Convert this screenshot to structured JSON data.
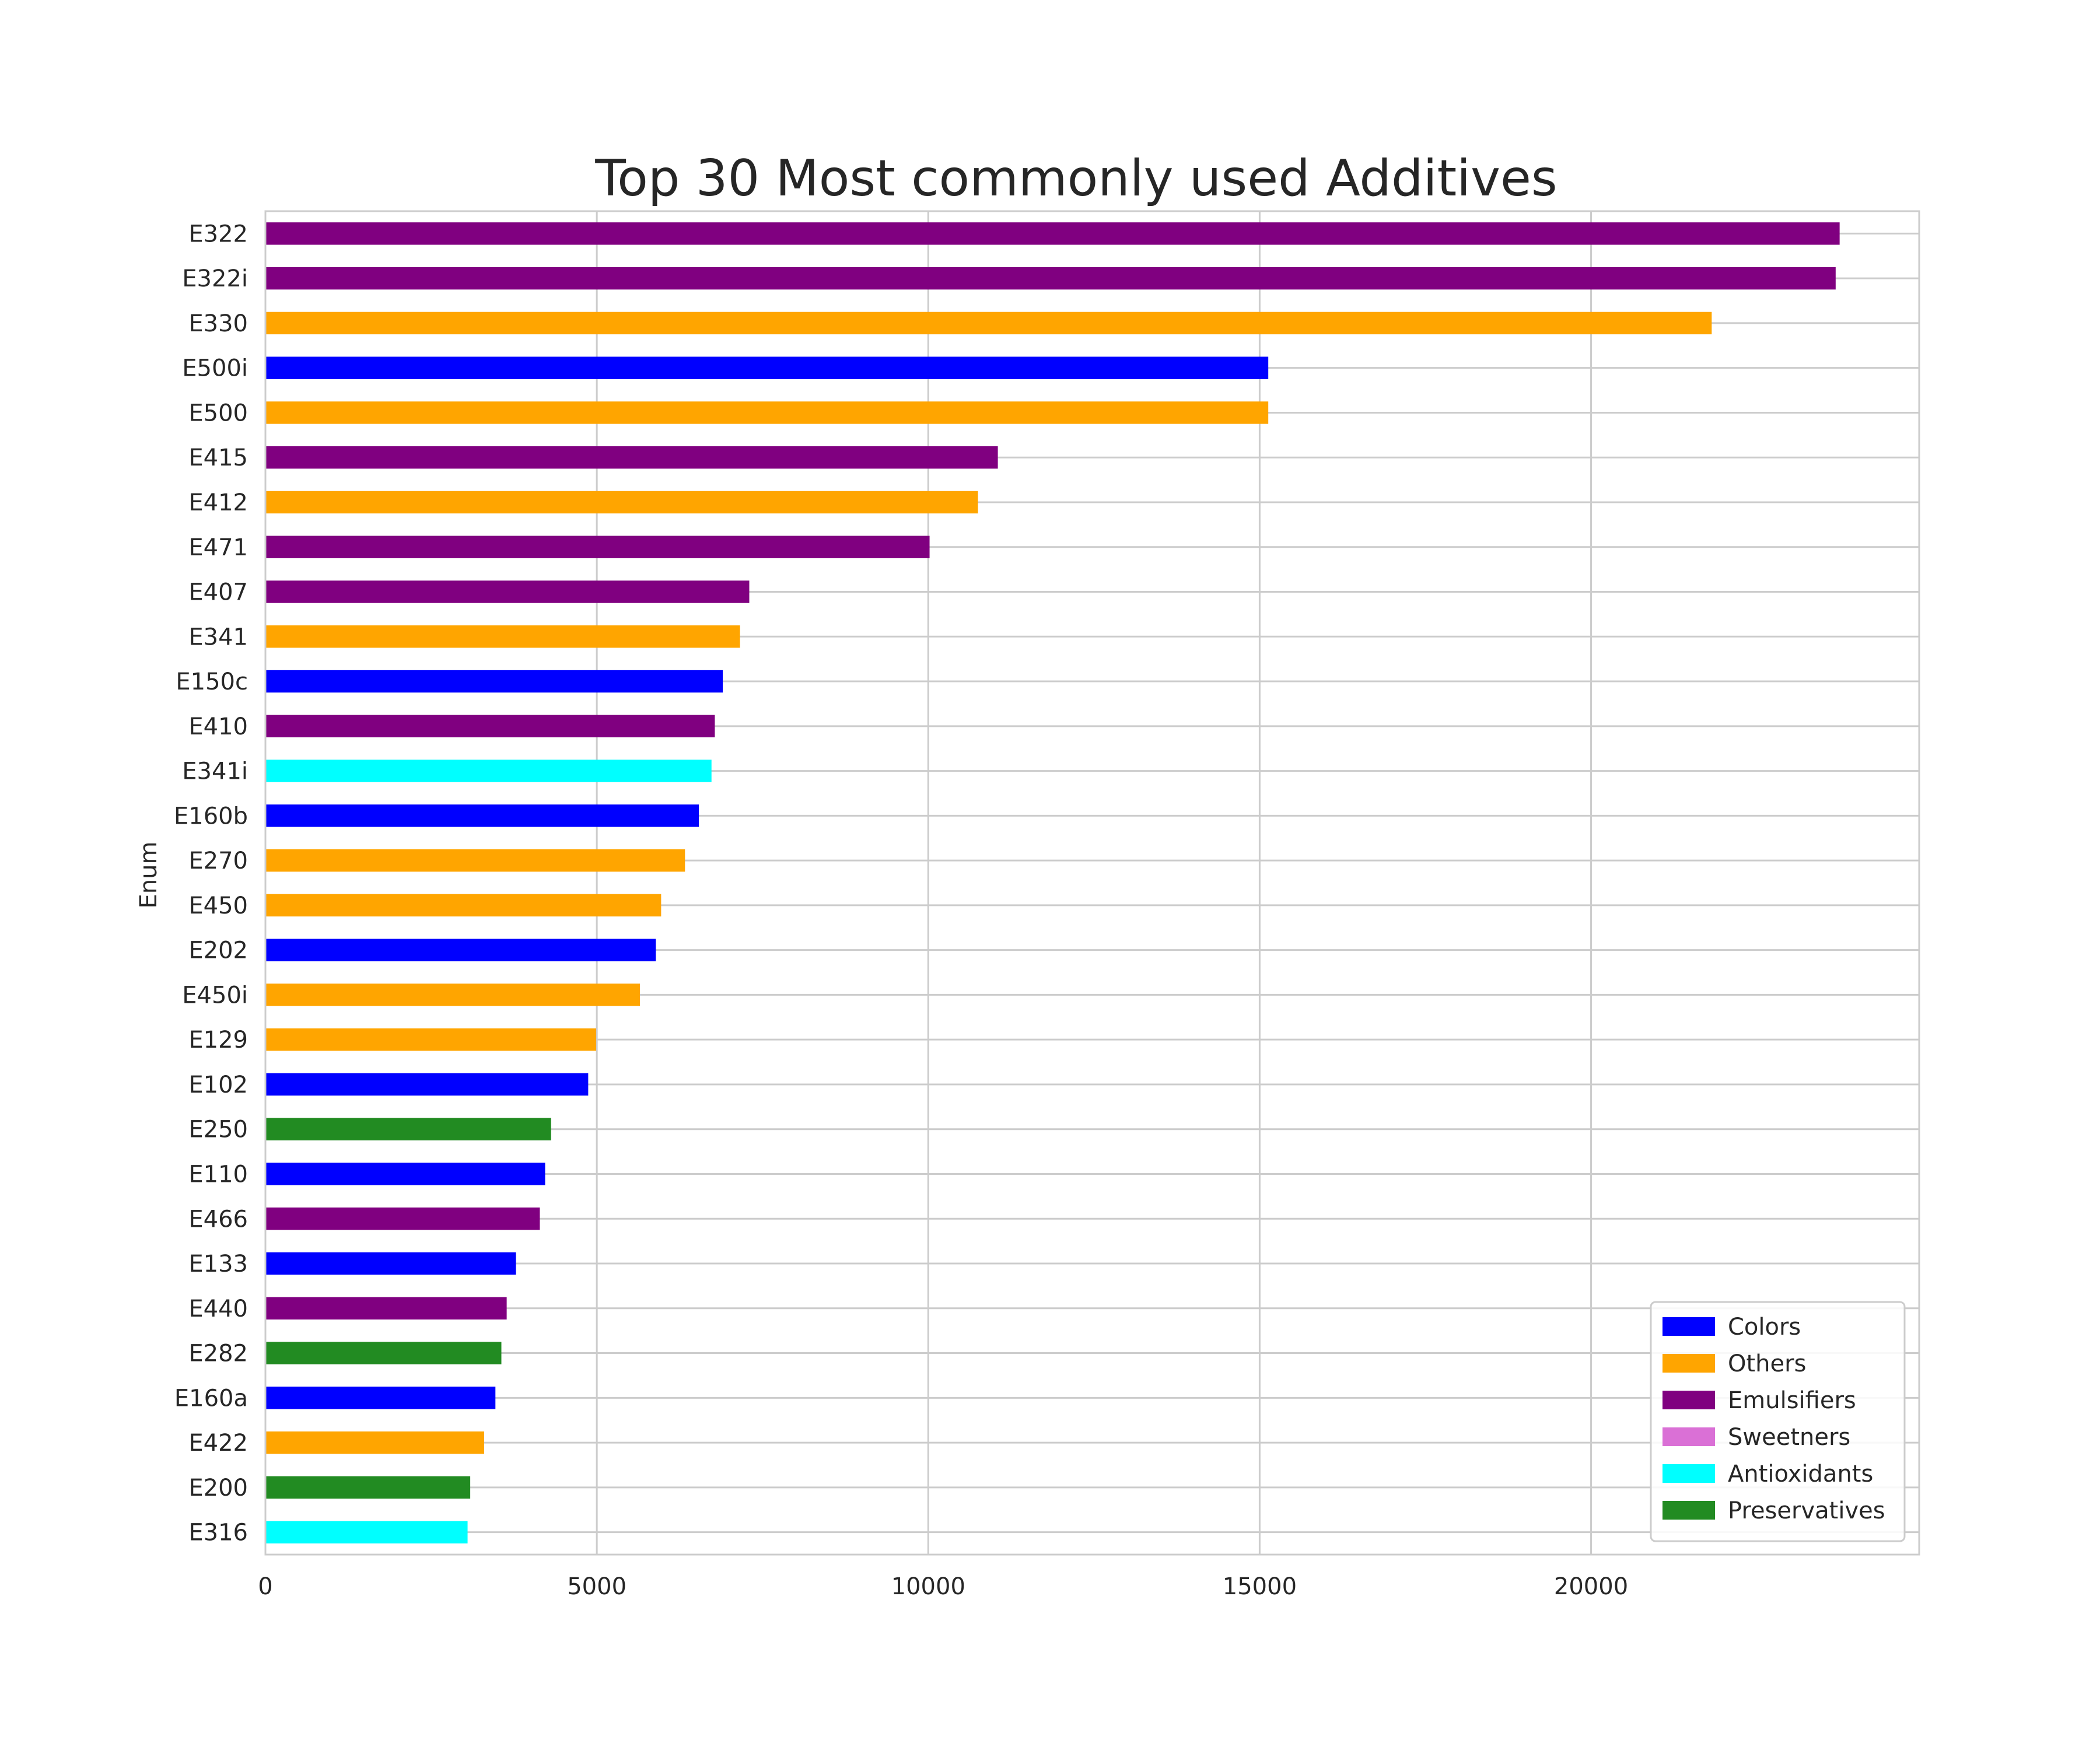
{
  "chart_data": {
    "type": "bar",
    "orientation": "horizontal",
    "title": "Top 30 Most commonly used Additives",
    "xlabel": "",
    "ylabel": "Enum",
    "xlim": [
      0,
      24950
    ],
    "xticks": [
      0,
      5000,
      10000,
      15000,
      20000
    ],
    "grid": true,
    "legend_position": "bottom-right",
    "category_colors": {
      "Colors": "#0000FF",
      "Others": "#FFA500",
      "Emulsifiers": "#800080",
      "Sweetners": "#DA70D6",
      "Antioxidants": "#00FFFF",
      "Preservatives": "#228B22"
    },
    "legend": [
      "Colors",
      "Others",
      "Emulsifiers",
      "Sweetners",
      "Antioxidants",
      "Preservatives"
    ],
    "bars": [
      {
        "label": "E322",
        "value": 23750,
        "category": "Emulsifiers"
      },
      {
        "label": "E322i",
        "value": 23690,
        "category": "Emulsifiers"
      },
      {
        "label": "E330",
        "value": 21820,
        "category": "Others"
      },
      {
        "label": "E500i",
        "value": 15130,
        "category": "Colors"
      },
      {
        "label": "E500",
        "value": 15130,
        "category": "Others"
      },
      {
        "label": "E415",
        "value": 11050,
        "category": "Emulsifiers"
      },
      {
        "label": "E412",
        "value": 10750,
        "category": "Others"
      },
      {
        "label": "E471",
        "value": 10020,
        "category": "Emulsifiers"
      },
      {
        "label": "E407",
        "value": 7300,
        "category": "Emulsifiers"
      },
      {
        "label": "E341",
        "value": 7160,
        "category": "Others"
      },
      {
        "label": "E150c",
        "value": 6900,
        "category": "Colors"
      },
      {
        "label": "E410",
        "value": 6780,
        "category": "Emulsifiers"
      },
      {
        "label": "E341i",
        "value": 6730,
        "category": "Antioxidants"
      },
      {
        "label": "E160b",
        "value": 6540,
        "category": "Colors"
      },
      {
        "label": "E270",
        "value": 6330,
        "category": "Others"
      },
      {
        "label": "E450",
        "value": 5970,
        "category": "Others"
      },
      {
        "label": "E202",
        "value": 5890,
        "category": "Colors"
      },
      {
        "label": "E450i",
        "value": 5650,
        "category": "Others"
      },
      {
        "label": "E129",
        "value": 4990,
        "category": "Others"
      },
      {
        "label": "E102",
        "value": 4870,
        "category": "Colors"
      },
      {
        "label": "E250",
        "value": 4310,
        "category": "Preservatives"
      },
      {
        "label": "E110",
        "value": 4220,
        "category": "Colors"
      },
      {
        "label": "E466",
        "value": 4140,
        "category": "Emulsifiers"
      },
      {
        "label": "E133",
        "value": 3780,
        "category": "Colors"
      },
      {
        "label": "E440",
        "value": 3640,
        "category": "Emulsifiers"
      },
      {
        "label": "E282",
        "value": 3560,
        "category": "Preservatives"
      },
      {
        "label": "E160a",
        "value": 3470,
        "category": "Colors"
      },
      {
        "label": "E422",
        "value": 3300,
        "category": "Others"
      },
      {
        "label": "E200",
        "value": 3090,
        "category": "Preservatives"
      },
      {
        "label": "E316",
        "value": 3050,
        "category": "Antioxidants"
      }
    ]
  }
}
